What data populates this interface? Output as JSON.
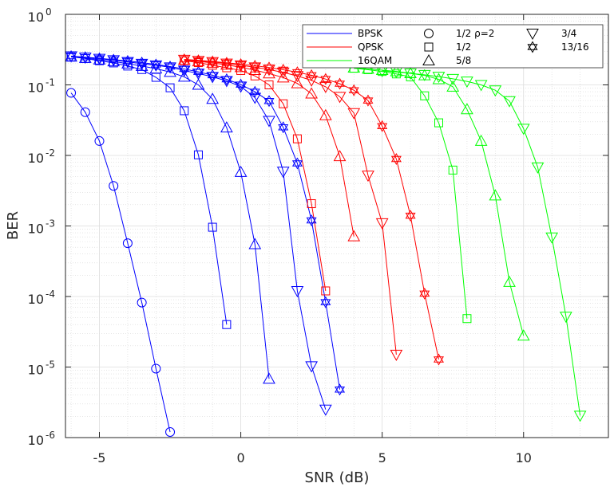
{
  "chart_data": {
    "type": "line",
    "title": "",
    "xlabel": "SNR (dB)",
    "ylabel": "BER",
    "xlim": [
      -6.2,
      13.0
    ],
    "ylim": [
      1e-06,
      1
    ],
    "yscale": "log",
    "grid": true,
    "x_ticks": [
      -5,
      0,
      5,
      10
    ],
    "x_tick_labels": [
      "-5",
      "0",
      "5",
      "10"
    ],
    "y_ticks": [
      {
        "value": 1.0,
        "base": "10",
        "exp": "0"
      },
      {
        "value": 0.1,
        "base": "10",
        "exp": "-1"
      },
      {
        "value": 0.01,
        "base": "10",
        "exp": "-2"
      },
      {
        "value": 0.001,
        "base": "10",
        "exp": "-3"
      },
      {
        "value": 0.0001,
        "base": "10",
        "exp": "-4"
      },
      {
        "value": 1e-05,
        "base": "10",
        "exp": "-5"
      },
      {
        "value": 1e-06,
        "base": "10",
        "exp": "-6"
      }
    ],
    "legend": {
      "placement": "top-right",
      "modulations": [
        {
          "name": "BPSK",
          "color": "#0000ff"
        },
        {
          "name": "QPSK",
          "color": "#ff0000"
        },
        {
          "name": "16QAM",
          "color": "#00ff00"
        }
      ],
      "rates": [
        {
          "marker": "circle",
          "label": "1/2 ρ=2"
        },
        {
          "marker": "square",
          "label": "1/2"
        },
        {
          "marker": "triangle-up",
          "label": "5/8"
        },
        {
          "marker": "triangle-down",
          "label": "3/4"
        },
        {
          "marker": "hexagram",
          "label": "13/16"
        }
      ]
    },
    "series": [
      {
        "name": "BPSK 1/2 ρ=2",
        "color": "#0000ff",
        "marker": "circle",
        "x": [
          -6,
          -5.5,
          -5,
          -4.5,
          -4,
          -3.5,
          -3,
          -2.5
        ],
        "y": [
          0.077,
          0.041,
          0.016,
          0.0037,
          0.00057,
          8.2e-05,
          9.5e-06,
          1.2e-06
        ]
      },
      {
        "name": "BPSK 1/2",
        "color": "#0000ff",
        "marker": "square",
        "x": [
          -6,
          -5.5,
          -5,
          -4.5,
          -4,
          -3.5,
          -3,
          -2.5,
          -2,
          -1.5,
          -1,
          -0.5
        ],
        "y": [
          0.25,
          0.237,
          0.22,
          0.205,
          0.185,
          0.165,
          0.128,
          0.091,
          0.043,
          0.0102,
          0.00096,
          4e-05
        ]
      },
      {
        "name": "BPSK 5/8",
        "color": "#0000ff",
        "marker": "triangle-up",
        "x": [
          -6,
          -5.5,
          -5,
          -4.5,
          -4,
          -3.5,
          -3,
          -2.5,
          -2,
          -1.5,
          -1,
          -0.5,
          0,
          0.5,
          1
        ],
        "y": [
          0.25,
          0.24,
          0.228,
          0.215,
          0.2,
          0.185,
          0.17,
          0.152,
          0.13,
          0.1,
          0.063,
          0.0248,
          0.0058,
          0.00055,
          6.8e-06
        ]
      },
      {
        "name": "BPSK 3/4",
        "color": "#0000ff",
        "marker": "triangle-down",
        "x": [
          -6,
          -5.5,
          -5,
          -4.5,
          -4,
          -3.5,
          -3,
          -2.5,
          -2,
          -1.5,
          -1,
          -0.5,
          0,
          0.5,
          1,
          1.5,
          2,
          2.5,
          3
        ],
        "y": [
          0.255,
          0.245,
          0.235,
          0.225,
          0.212,
          0.2,
          0.19,
          0.178,
          0.16,
          0.145,
          0.13,
          0.114,
          0.095,
          0.066,
          0.031,
          0.0059,
          0.00012,
          1.03e-05,
          2.5e-06
        ]
      },
      {
        "name": "BPSK 13/16",
        "color": "#0000ff",
        "marker": "hexagram",
        "x": [
          -6,
          -5.5,
          -5,
          -4.5,
          -4,
          -3.5,
          -3,
          -2.5,
          -2,
          -1.5,
          -1,
          -0.5,
          0,
          0.5,
          1,
          1.5,
          2,
          2.5,
          3,
          3.5
        ],
        "y": [
          0.255,
          0.247,
          0.238,
          0.228,
          0.218,
          0.207,
          0.195,
          0.182,
          0.168,
          0.153,
          0.137,
          0.12,
          0.101,
          0.08,
          0.059,
          0.025,
          0.0077,
          0.0012,
          8.3e-05,
          4.8e-06
        ]
      },
      {
        "name": "QPSK 1/2",
        "color": "#ff0000",
        "marker": "square",
        "x": [
          -2,
          -1.5,
          -1,
          -0.5,
          0,
          0.5,
          1,
          1.5,
          2,
          2.5,
          3
        ],
        "y": [
          0.22,
          0.207,
          0.19,
          0.175,
          0.16,
          0.134,
          0.1,
          0.054,
          0.0172,
          0.00207,
          0.00012
        ]
      },
      {
        "name": "QPSK 5/8",
        "color": "#ff0000",
        "marker": "triangle-up",
        "x": [
          -2,
          -1.5,
          -1,
          -0.5,
          0,
          0.5,
          1,
          1.5,
          2,
          2.5,
          3,
          3.5,
          4
        ],
        "y": [
          0.225,
          0.215,
          0.205,
          0.192,
          0.178,
          0.162,
          0.145,
          0.127,
          0.105,
          0.075,
          0.037,
          0.0097,
          0.00071
        ]
      },
      {
        "name": "QPSK 3/4",
        "color": "#ff0000",
        "marker": "triangle-down",
        "x": [
          -2,
          -1.5,
          -1,
          -0.5,
          0,
          0.5,
          1,
          1.5,
          2,
          2.5,
          3,
          3.5,
          4,
          4.5,
          5,
          5.5
        ],
        "y": [
          0.228,
          0.22,
          0.211,
          0.201,
          0.19,
          0.178,
          0.165,
          0.15,
          0.134,
          0.116,
          0.094,
          0.068,
          0.04,
          0.0052,
          0.0011,
          1.5e-05
        ]
      },
      {
        "name": "QPSK 13/16",
        "color": "#ff0000",
        "marker": "hexagram",
        "x": [
          -2,
          -1.5,
          -1,
          -0.5,
          0,
          0.5,
          1,
          1.5,
          2,
          2.5,
          3,
          3.5,
          4,
          4.5,
          5,
          5.5,
          6,
          6.5,
          7
        ],
        "y": [
          0.23,
          0.223,
          0.215,
          0.206,
          0.197,
          0.187,
          0.176,
          0.164,
          0.151,
          0.137,
          0.121,
          0.104,
          0.084,
          0.06,
          0.026,
          0.0089,
          0.0014,
          0.00011,
          1.28e-05
        ]
      },
      {
        "name": "16QAM 1/2",
        "color": "#00ff00",
        "marker": "square",
        "x": [
          4,
          4.5,
          5,
          5.5,
          6,
          6.5,
          7,
          7.5,
          8
        ],
        "y": [
          0.172,
          0.164,
          0.155,
          0.143,
          0.13,
          0.07,
          0.029,
          0.0062,
          4.86e-05
        ]
      },
      {
        "name": "16QAM 5/8",
        "color": "#00ff00",
        "marker": "triangle-up",
        "x": [
          4,
          4.5,
          5,
          5.5,
          6,
          6.5,
          7,
          7.5,
          8,
          8.5,
          9,
          9.5,
          10
        ],
        "y": [
          0.175,
          0.169,
          0.162,
          0.155,
          0.146,
          0.136,
          0.12,
          0.094,
          0.045,
          0.016,
          0.0027,
          0.00016,
          2.78e-05
        ]
      },
      {
        "name": "16QAM 3/4",
        "color": "#00ff00",
        "marker": "triangle-down",
        "x": [
          5,
          5.5,
          6,
          6.5,
          7,
          7.5,
          8,
          8.5,
          9,
          9.5,
          10,
          10.5,
          11,
          11.5,
          12
        ],
        "y": [
          0.158,
          0.152,
          0.146,
          0.139,
          0.131,
          0.122,
          0.112,
          0.1,
          0.084,
          0.059,
          0.024,
          0.0068,
          0.00069,
          5.2e-05,
          2.05e-06
        ]
      }
    ]
  }
}
